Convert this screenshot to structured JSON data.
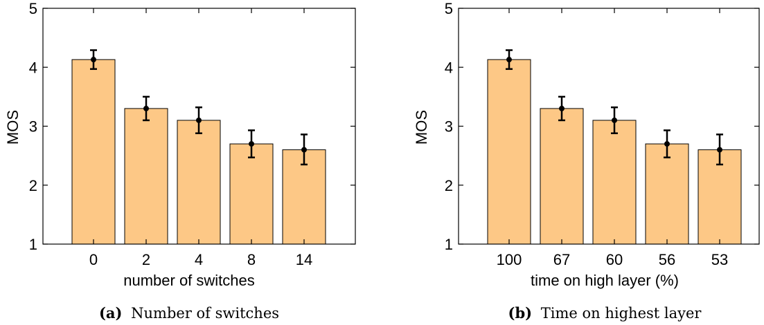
{
  "chart_data": [
    {
      "type": "bar",
      "panel": "a",
      "caption_label": "(a)",
      "caption_text": "Number of switches",
      "categories": [
        "0",
        "2",
        "4",
        "8",
        "14"
      ],
      "values": [
        4.13,
        3.3,
        3.1,
        2.7,
        2.6
      ],
      "error_low": [
        3.97,
        3.1,
        2.88,
        2.47,
        2.35
      ],
      "error_high": [
        4.29,
        3.5,
        3.32,
        2.93,
        2.86
      ],
      "xlabel": "number of switches",
      "ylabel": "MOS",
      "ylim": [
        1,
        5
      ],
      "yticks": [
        "1",
        "2",
        "3",
        "4",
        "5"
      ],
      "bar_color": "#FDC886",
      "grid": false
    },
    {
      "type": "bar",
      "panel": "b",
      "caption_label": "(b)",
      "caption_text": "Time on highest layer",
      "categories": [
        "100",
        "67",
        "60",
        "56",
        "53"
      ],
      "values": [
        4.13,
        3.3,
        3.1,
        2.7,
        2.6
      ],
      "error_low": [
        3.97,
        3.1,
        2.88,
        2.47,
        2.35
      ],
      "error_high": [
        4.29,
        3.5,
        3.32,
        2.93,
        2.86
      ],
      "xlabel": "time on high layer (%)",
      "ylabel": "MOS",
      "ylim": [
        1,
        5
      ],
      "yticks": [
        "1",
        "2",
        "3",
        "4",
        "5"
      ],
      "bar_color": "#FDC886",
      "grid": false
    }
  ]
}
